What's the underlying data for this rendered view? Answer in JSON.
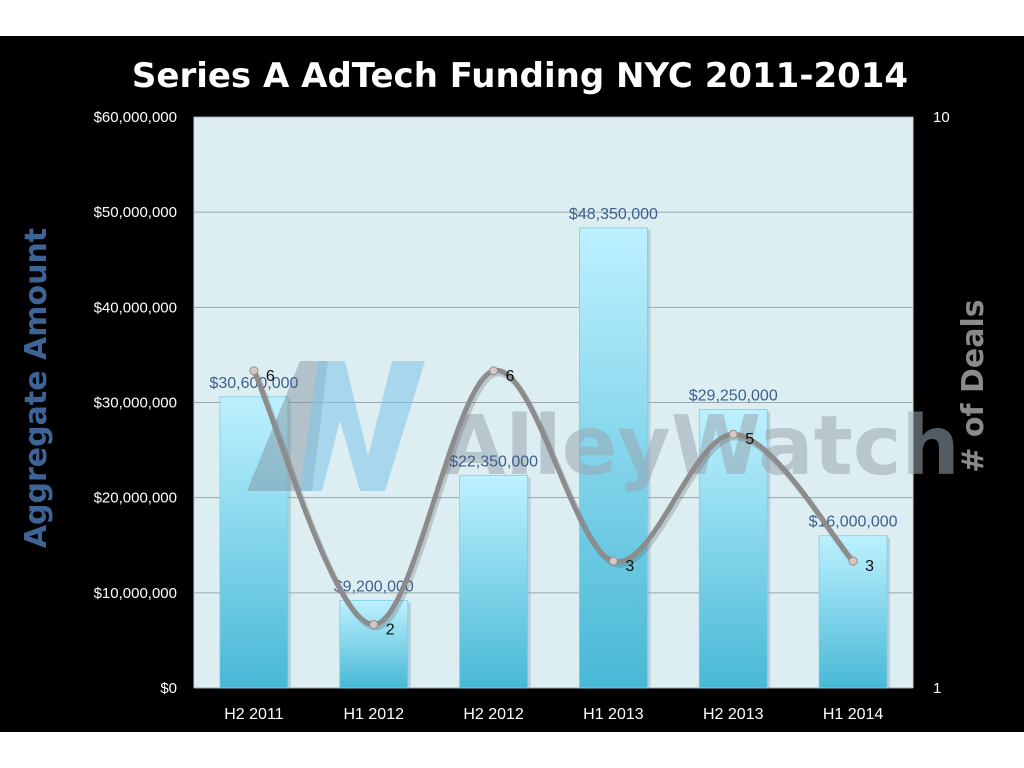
{
  "chart_data": {
    "type": "bar",
    "title": "Series A AdTech Funding NYC 2011-2014",
    "categories": [
      "H2 2011",
      "H1 2012",
      "H2 2012",
      "H1 2013",
      "H2 2013",
      "H1 2014"
    ],
    "series": [
      {
        "name": "Aggregate Amount",
        "type": "bar",
        "axis": "left",
        "values": [
          30600000,
          9200000,
          22350000,
          48350000,
          29250000,
          16000000
        ],
        "labels": [
          "$30,600,000",
          "$9,200,000",
          "$22,350,000",
          "$48,350,000",
          "$29,250,000",
          "$16,000,000"
        ]
      },
      {
        "name": "# of Deals",
        "type": "line",
        "axis": "right",
        "smooth": true,
        "values": [
          6,
          2,
          6,
          3,
          5,
          3
        ],
        "labels": [
          "6",
          "2",
          "6",
          "3",
          "5",
          "3"
        ]
      }
    ],
    "ylabel": "Aggregate Amount",
    "ylabel_right": "# of Deals",
    "ylim": [
      0,
      60000000
    ],
    "ylim_right": [
      1,
      10
    ],
    "yticks": [
      0,
      10000000,
      20000000,
      30000000,
      40000000,
      50000000,
      60000000
    ],
    "ytick_labels": [
      "$0",
      "$10,000,000",
      "$20,000,000",
      "$30,000,000",
      "$40,000,000",
      "$50,000,000",
      "$60,000,000"
    ],
    "yticks_right": [
      1,
      10
    ],
    "ytick_labels_right": [
      "1",
      "10"
    ],
    "grid": true,
    "legend": "none",
    "colors": {
      "background": "#000000",
      "plot_background": "#ddeef3",
      "bar_top": "#bdf1ff",
      "bar_bottom": "#48b8d6",
      "line": "#8c8c8c",
      "bar_label": "#3c5f8c",
      "left_axis_label": "#3e6396",
      "right_axis_label": "#8a8a8a"
    }
  },
  "watermark": {
    "logo_letters": "AW",
    "text": "AlleyWatch"
  }
}
